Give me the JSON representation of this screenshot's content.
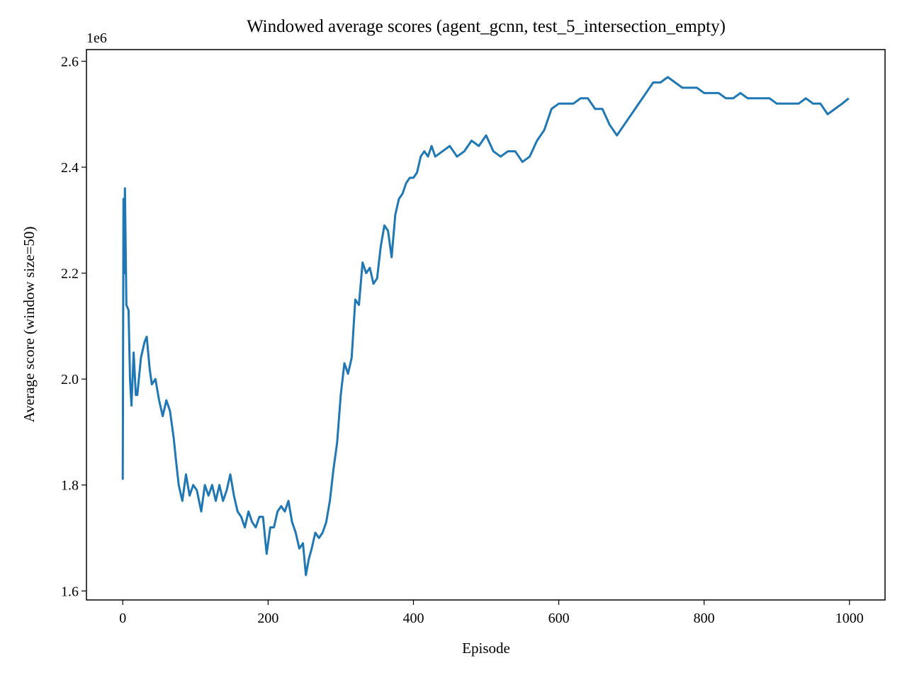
{
  "chart_data": {
    "type": "line",
    "title": "Windowed average scores (agent_gcnn, test_5_intersection_empty)",
    "x_label": "Episode",
    "y_label": "Average score (window size=50)",
    "y_offset_label": "1e6",
    "xlim": [
      -49.95,
      1048.95
    ],
    "ylim": [
      1.583,
      2.622
    ],
    "xticks": [
      0,
      200,
      400,
      600,
      800,
      1000
    ],
    "yticks": [
      1.6,
      1.8,
      {
        "value": 2,
        "label": "2.0"
      },
      2.2,
      2.4,
      2.6
    ],
    "series": [
      {
        "color": "#1f77b4",
        "x": [
          0,
          1,
          2,
          3,
          5,
          8,
          10,
          12,
          15,
          18,
          20,
          25,
          30,
          33,
          37,
          40,
          45,
          50,
          55,
          60,
          65,
          70,
          73,
          77,
          82,
          87,
          92,
          97,
          102,
          108,
          113,
          118,
          123,
          128,
          133,
          138,
          143,
          148,
          153,
          158,
          163,
          168,
          173,
          178,
          183,
          188,
          193,
          198,
          203,
          208,
          213,
          218,
          223,
          228,
          233,
          238,
          243,
          248,
          252,
          256,
          260,
          265,
          270,
          275,
          280,
          285,
          290,
          295,
          300,
          305,
          310,
          315,
          320,
          325,
          330,
          335,
          340,
          345,
          350,
          355,
          360,
          365,
          370,
          375,
          380,
          385,
          390,
          395,
          400,
          405,
          410,
          415,
          420,
          425,
          430,
          440,
          450,
          460,
          470,
          480,
          490,
          500,
          510,
          520,
          530,
          540,
          550,
          560,
          570,
          580,
          590,
          600,
          610,
          620,
          630,
          640,
          650,
          660,
          670,
          680,
          690,
          700,
          710,
          720,
          730,
          740,
          750,
          760,
          770,
          780,
          790,
          800,
          810,
          820,
          830,
          840,
          850,
          860,
          870,
          880,
          890,
          900,
          910,
          920,
          930,
          940,
          950,
          960,
          970,
          980,
          990,
          999
        ],
        "values": [
          1.81,
          2.34,
          2.2,
          2.36,
          2.14,
          2.13,
          2.0,
          1.95,
          2.05,
          1.97,
          1.97,
          2.04,
          2.07,
          2.08,
          2.02,
          1.99,
          2.0,
          1.96,
          1.93,
          1.96,
          1.94,
          1.89,
          1.85,
          1.8,
          1.77,
          1.82,
          1.78,
          1.8,
          1.79,
          1.75,
          1.8,
          1.78,
          1.8,
          1.77,
          1.8,
          1.77,
          1.79,
          1.82,
          1.78,
          1.75,
          1.74,
          1.72,
          1.75,
          1.73,
          1.72,
          1.74,
          1.74,
          1.67,
          1.72,
          1.72,
          1.75,
          1.76,
          1.75,
          1.77,
          1.73,
          1.71,
          1.68,
          1.69,
          1.63,
          1.66,
          1.68,
          1.71,
          1.7,
          1.71,
          1.73,
          1.77,
          1.83,
          1.88,
          1.97,
          2.03,
          2.01,
          2.04,
          2.15,
          2.14,
          2.22,
          2.2,
          2.21,
          2.18,
          2.19,
          2.25,
          2.29,
          2.28,
          2.23,
          2.31,
          2.34,
          2.35,
          2.37,
          2.38,
          2.38,
          2.39,
          2.42,
          2.43,
          2.42,
          2.44,
          2.42,
          2.43,
          2.44,
          2.42,
          2.43,
          2.45,
          2.44,
          2.46,
          2.43,
          2.42,
          2.43,
          2.43,
          2.41,
          2.42,
          2.45,
          2.47,
          2.51,
          2.52,
          2.52,
          2.52,
          2.53,
          2.53,
          2.51,
          2.51,
          2.48,
          2.46,
          2.48,
          2.5,
          2.52,
          2.54,
          2.56,
          2.56,
          2.57,
          2.56,
          2.55,
          2.55,
          2.55,
          2.54,
          2.54,
          2.54,
          2.53,
          2.53,
          2.54,
          2.53,
          2.53,
          2.53,
          2.53,
          2.52,
          2.52,
          2.52,
          2.52,
          2.53,
          2.52,
          2.52,
          2.5,
          2.51,
          2.52,
          2.53
        ]
      }
    ]
  }
}
